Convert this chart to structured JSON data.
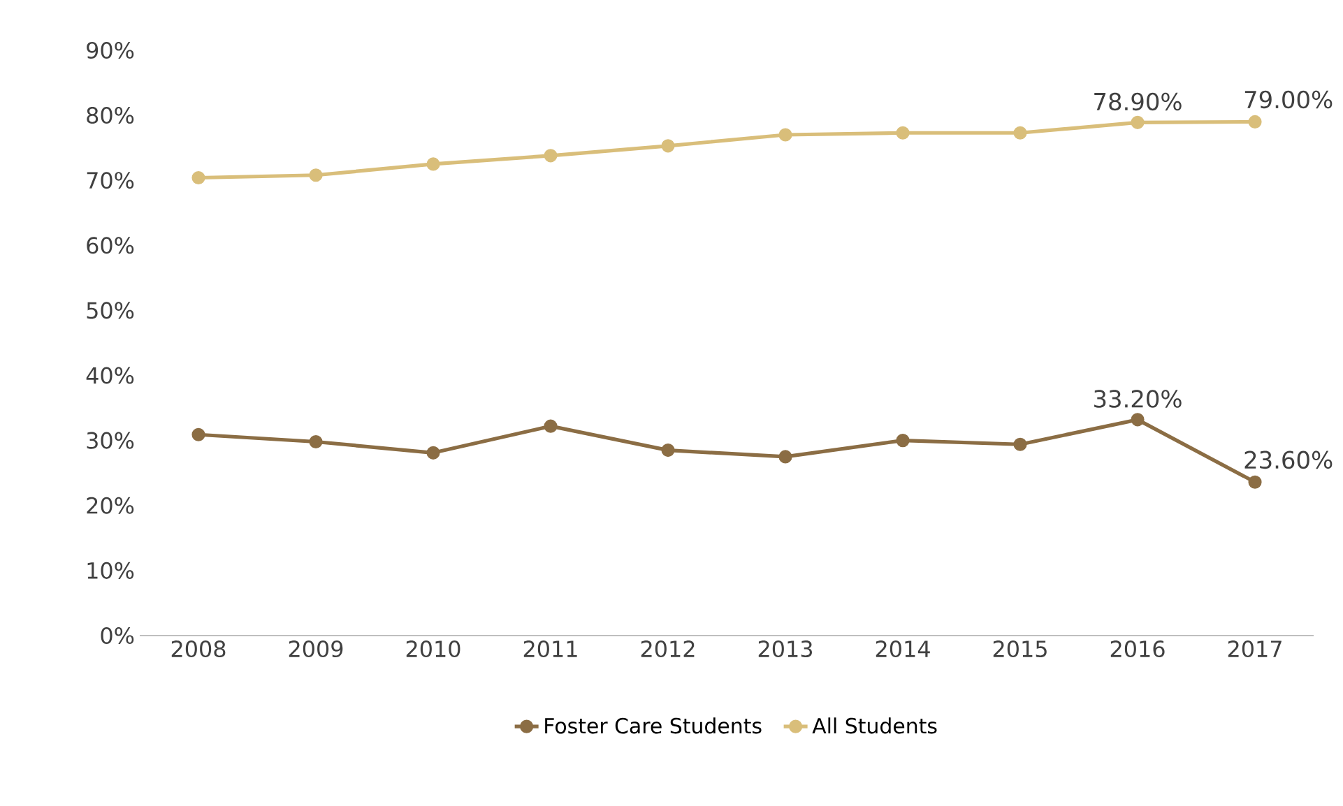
{
  "chart_data": {
    "type": "line",
    "categories": [
      "2008",
      "2009",
      "2010",
      "2011",
      "2012",
      "2013",
      "2014",
      "2015",
      "2016",
      "2017"
    ],
    "series": [
      {
        "name": "Foster Care Students",
        "color": "#8b6d44",
        "values": [
          30.9,
          29.8,
          28.1,
          32.2,
          28.5,
          27.5,
          30.0,
          29.4,
          33.2,
          23.6
        ],
        "value_labels": [
          null,
          null,
          null,
          null,
          null,
          null,
          null,
          null,
          "33.20%",
          "23.60%"
        ]
      },
      {
        "name": "All Students",
        "color": "#d9be7a",
        "values": [
          70.4,
          70.8,
          72.5,
          73.8,
          75.3,
          77.0,
          77.3,
          77.3,
          78.9,
          79.0
        ],
        "value_labels": [
          null,
          null,
          null,
          null,
          null,
          null,
          null,
          null,
          "78.90%",
          "79.00%"
        ]
      }
    ],
    "ylim": [
      0,
      90
    ],
    "yticks": [
      {
        "value": 0,
        "label": "0%"
      },
      {
        "value": 10,
        "label": "10%"
      },
      {
        "value": 20,
        "label": "20%"
      },
      {
        "value": 30,
        "label": "30%"
      },
      {
        "value": 40,
        "label": "40%"
      },
      {
        "value": 50,
        "label": "50%"
      },
      {
        "value": 60,
        "label": "60%"
      },
      {
        "value": 70,
        "label": "70%"
      },
      {
        "value": 80,
        "label": "80%"
      },
      {
        "value": 90,
        "label": "90%"
      }
    ],
    "grid": false,
    "legend": "bottom",
    "marker": "circle",
    "line_style": "solid"
  }
}
